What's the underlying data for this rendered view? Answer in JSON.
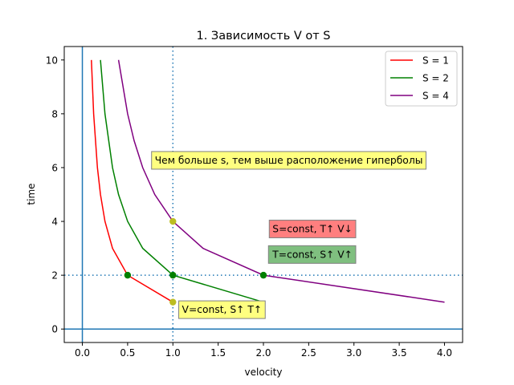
{
  "chart_data": {
    "type": "line",
    "title": "1. Зависимость V от S",
    "xlabel": "velocity",
    "ylabel": "time",
    "xlim": [
      -0.2,
      4.2
    ],
    "ylim": [
      -0.5,
      10.5
    ],
    "xticks": [
      0.0,
      0.5,
      1.0,
      1.5,
      2.0,
      2.5,
      3.0,
      3.5,
      4.0
    ],
    "xtick_labels": [
      "0.0",
      "0.5",
      "1.0",
      "1.5",
      "2.0",
      "2.5",
      "3.0",
      "3.5",
      "4.0"
    ],
    "yticks": [
      0,
      2,
      4,
      6,
      8,
      10
    ],
    "ytick_labels": [
      "0",
      "2",
      "4",
      "6",
      "8",
      "10"
    ],
    "grid": false,
    "legend_position": "top-right",
    "series": [
      {
        "name": "S = 1",
        "color": "#ff0000",
        "x": [
          0.1,
          0.125,
          0.1667,
          0.2,
          0.25,
          0.3333,
          0.5,
          1.0
        ],
        "y": [
          10,
          8,
          6,
          5,
          4,
          3,
          2,
          1
        ]
      },
      {
        "name": "S = 2",
        "color": "#008000",
        "x": [
          0.2,
          0.25,
          0.3333,
          0.4,
          0.5,
          0.6667,
          1.0,
          2.0
        ],
        "y": [
          10,
          8,
          6,
          5,
          4,
          3,
          2,
          1
        ]
      },
      {
        "name": "S = 4",
        "color": "#800080",
        "x": [
          0.4,
          0.5,
          0.5714,
          0.6667,
          0.8,
          1.0,
          1.3333,
          2.0,
          4.0
        ],
        "y": [
          10,
          8,
          7,
          6,
          5,
          4,
          3,
          2,
          1
        ]
      }
    ],
    "reference_lines": [
      {
        "orientation": "vertical",
        "value": 0,
        "style": "solid",
        "color": "#1f77b4"
      },
      {
        "orientation": "horizontal",
        "value": 0,
        "style": "solid",
        "color": "#1f77b4"
      },
      {
        "orientation": "vertical",
        "value": 1,
        "style": "dotted",
        "color": "#1f77b4"
      },
      {
        "orientation": "horizontal",
        "value": 2,
        "style": "dotted",
        "color": "#1f77b4"
      }
    ],
    "markers": [
      {
        "x": 0.5,
        "y": 2,
        "color": "#008000"
      },
      {
        "x": 1.0,
        "y": 2,
        "color": "#008000"
      },
      {
        "x": 2.0,
        "y": 2,
        "color": "#008000"
      },
      {
        "x": 1.0,
        "y": 1,
        "color": "#bcbd22"
      },
      {
        "x": 1.0,
        "y": 4,
        "color": "#bcbd22"
      }
    ],
    "annotations": [
      {
        "text": "Чем больше s, тем выше расположение гиперболы",
        "x": 0.8,
        "y": 6.15,
        "bg": "#ffff80"
      },
      {
        "text": "S=const, T↑ V↓",
        "x": 2.1,
        "y": 3.6,
        "bg": "#ff7f7f"
      },
      {
        "text": "T=const, S↑ V↑",
        "x": 2.1,
        "y": 2.65,
        "bg": "#7fbf7f"
      },
      {
        "text": "V=const, S↑ T↑",
        "x": 1.1,
        "y": 0.6,
        "bg": "#ffff80"
      }
    ]
  }
}
